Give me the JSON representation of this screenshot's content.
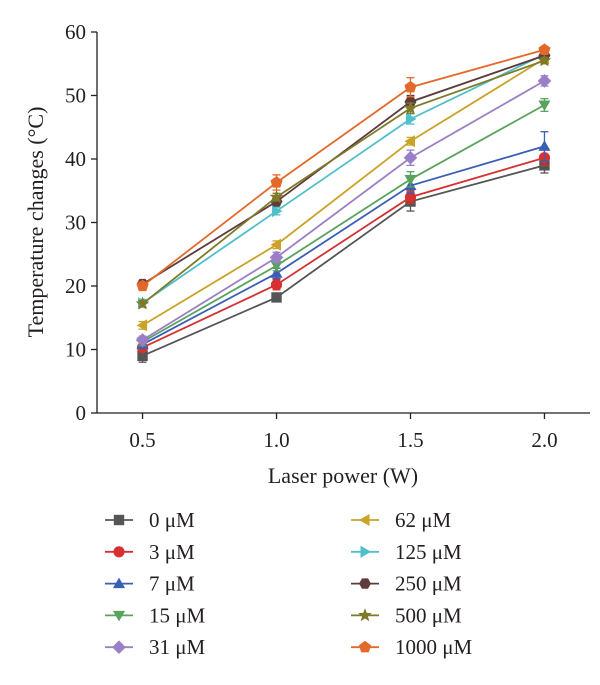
{
  "chart_data": {
    "type": "line",
    "xlabel": "Laser power (W)",
    "ylabel": "Temperature changes (°C)",
    "x": [
      0.5,
      1.0,
      1.5,
      2.0
    ],
    "x_tick_labels": [
      "0.5",
      "1.0",
      "1.5",
      "2.0"
    ],
    "xlim": [
      0.33,
      2.17
    ],
    "ylim": [
      0,
      60
    ],
    "y_ticks": [
      0,
      10,
      20,
      30,
      40,
      50,
      60
    ],
    "grid": false,
    "legend_position": "bottom",
    "series": [
      {
        "name": "0 μM",
        "color": "#555555",
        "marker": "square",
        "values": [
          9.0,
          18.2,
          33.3,
          39.0
        ],
        "errors": [
          1.0,
          0.6,
          1.5,
          1.2
        ]
      },
      {
        "name": "3 μM",
        "color": "#d63031",
        "marker": "circle",
        "values": [
          10.3,
          20.2,
          34.0,
          40.2
        ],
        "errors": [
          0.6,
          0.8,
          1.0,
          1.2
        ]
      },
      {
        "name": "7 μM",
        "color": "#3b5eb5",
        "marker": "triangle-up",
        "values": [
          10.8,
          22.0,
          35.8,
          42.0
        ],
        "errors": [
          0.6,
          0.8,
          1.2,
          2.3
        ]
      },
      {
        "name": "15 μM",
        "color": "#59a35d",
        "marker": "triangle-down",
        "values": [
          11.2,
          23.2,
          36.8,
          48.5
        ],
        "errors": [
          0.6,
          0.8,
          1.2,
          1.0
        ]
      },
      {
        "name": "31 μM",
        "color": "#9b7fc6",
        "marker": "diamond",
        "values": [
          11.5,
          24.5,
          40.2,
          52.3
        ],
        "errors": [
          0.6,
          0.8,
          1.2,
          0.8
        ]
      },
      {
        "name": "62 μM",
        "color": "#c9a227",
        "marker": "triangle-left",
        "values": [
          13.8,
          26.5,
          42.8,
          55.8
        ],
        "errors": [
          0.6,
          0.6,
          0.6,
          0.6
        ]
      },
      {
        "name": "125 μM",
        "color": "#4fbfc9",
        "marker": "triangle-right",
        "values": [
          17.3,
          31.8,
          46.3,
          56.5
        ],
        "errors": [
          0.6,
          0.6,
          0.8,
          0.6
        ]
      },
      {
        "name": "250 μM",
        "color": "#5e3c3c",
        "marker": "hexagon",
        "values": [
          20.3,
          33.3,
          49.0,
          56.3
        ],
        "errors": [
          0.5,
          0.6,
          1.0,
          0.6
        ]
      },
      {
        "name": "500 μM",
        "color": "#7f7a2a",
        "marker": "star",
        "values": [
          17.2,
          34.0,
          48.0,
          55.5
        ],
        "errors": [
          0.5,
          0.6,
          0.8,
          0.5
        ]
      },
      {
        "name": "1000 μM",
        "color": "#e3692b",
        "marker": "pentagon",
        "values": [
          20.0,
          36.3,
          51.3,
          57.2
        ],
        "errors": [
          0.6,
          1.2,
          1.5,
          0.5
        ]
      }
    ]
  }
}
